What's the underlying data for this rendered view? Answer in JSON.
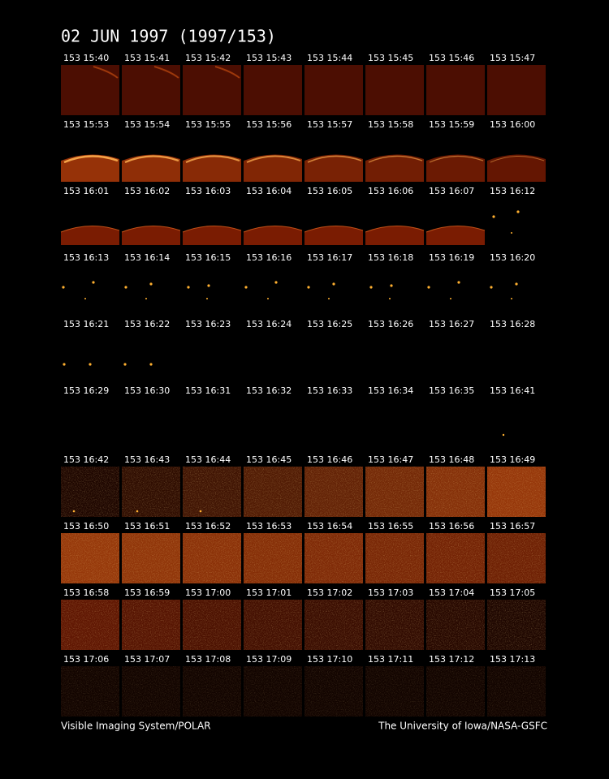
{
  "header": {
    "title": "02 JUN 1997  (1997/153)"
  },
  "frames": [
    [
      "153 15:40",
      "153 15:41",
      "153 15:42",
      "153 15:43",
      "153 15:44",
      "153 15:45",
      "153 15:46",
      "153 15:47"
    ],
    [
      "153 15:53",
      "153 15:54",
      "153 15:55",
      "153 15:56",
      "153 15:57",
      "153 15:58",
      "153 15:59",
      "153 16:00"
    ],
    [
      "153 16:01",
      "153 16:02",
      "153 16:03",
      "153 16:04",
      "153 16:05",
      "153 16:06",
      "153 16:07",
      "153 16:12"
    ],
    [
      "153 16:13",
      "153 16:14",
      "153 16:15",
      "153 16:16",
      "153 16:17",
      "153 16:18",
      "153 16:19",
      "153 16:20"
    ],
    [
      "153 16:21",
      "153 16:22",
      "153 16:23",
      "153 16:24",
      "153 16:25",
      "153 16:26",
      "153 16:27",
      "153 16:28"
    ],
    [
      "153 16:29",
      "153 16:30",
      "153 16:31",
      "153 16:32",
      "153 16:33",
      "153 16:34",
      "153 16:35",
      "153 16:41"
    ],
    [
      "153 16:42",
      "153 16:43",
      "153 16:44",
      "153 16:45",
      "153 16:46",
      "153 16:47",
      "153 16:48",
      "153 16:49"
    ],
    [
      "153 16:50",
      "153 16:51",
      "153 16:52",
      "153 16:53",
      "153 16:54",
      "153 16:55",
      "153 16:56",
      "153 16:57"
    ],
    [
      "153 16:58",
      "153 16:59",
      "153 17:00",
      "153 17:01",
      "153 17:02",
      "153 17:03",
      "153 17:04",
      "153 17:05"
    ],
    [
      "153 17:06",
      "153 17:07",
      "153 17:08",
      "153 17:09",
      "153 17:10",
      "153 17:11",
      "153 17:12",
      "153 17:13"
    ]
  ],
  "footer": {
    "left": "Visible Imaging System/POLAR",
    "right": "The University of Iowa/NASA-GSFC"
  }
}
